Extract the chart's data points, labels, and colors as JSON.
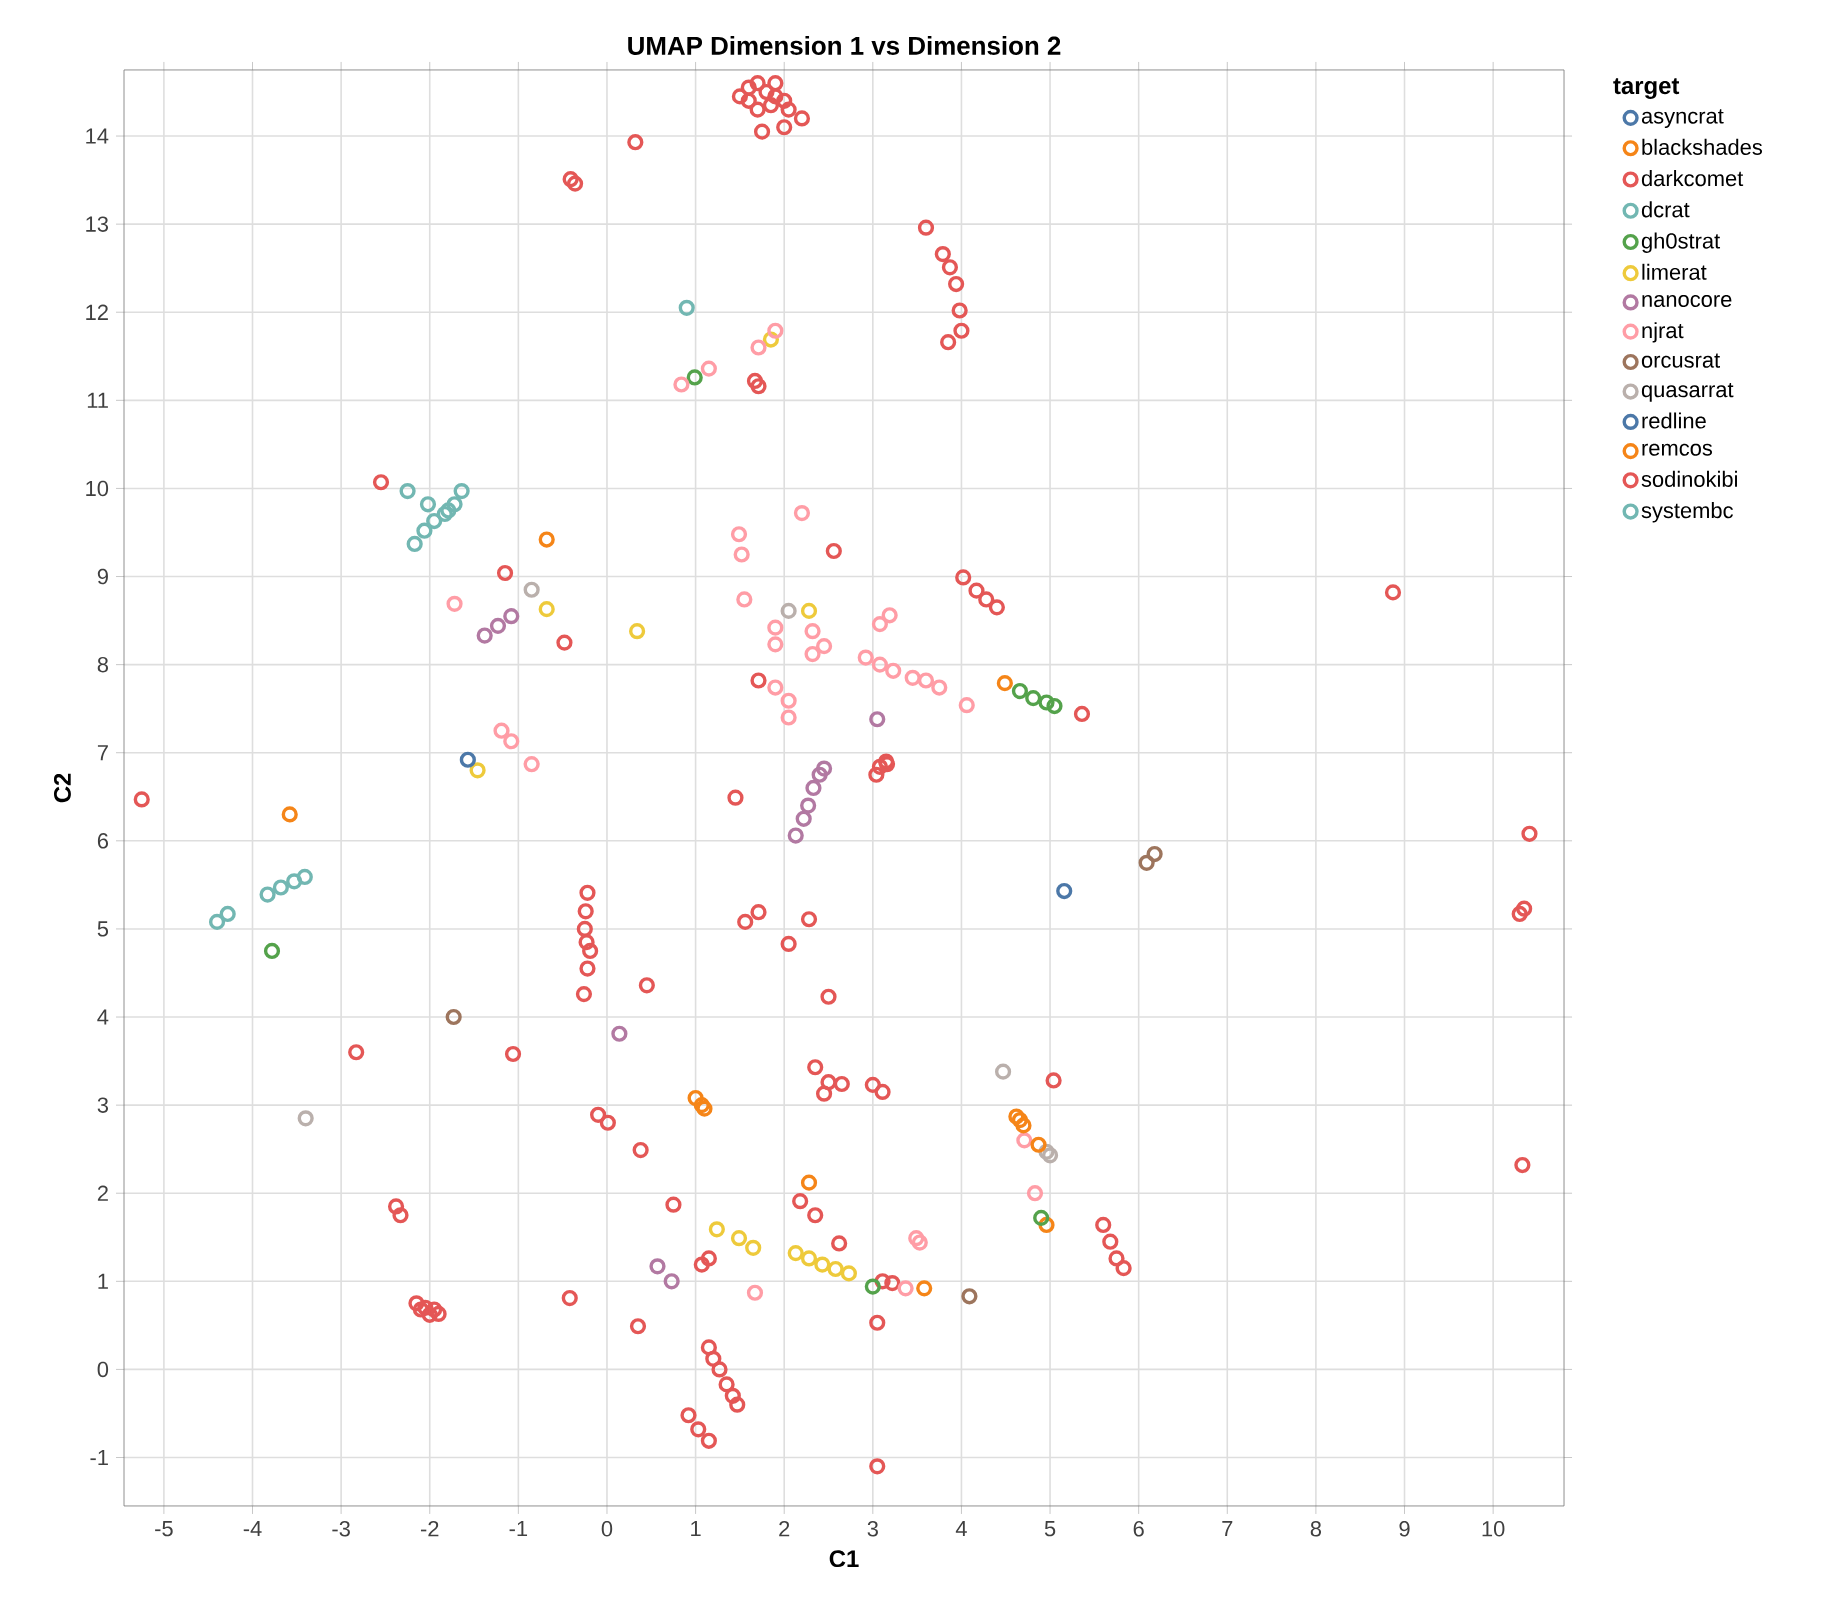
{
  "chart_data": {
    "type": "scatter",
    "title": "UMAP Dimension 1 vs Dimension 2",
    "xlabel": "C1",
    "ylabel": "C2",
    "legend_title": "target",
    "legend": "right",
    "grid": true,
    "marker": "circle",
    "xlim": [
      -5.45,
      10.8
    ],
    "ylim": [
      -1.55,
      14.75
    ],
    "xticks": [
      -5,
      -4,
      -3,
      -2,
      -1,
      0,
      1,
      2,
      3,
      4,
      5,
      6,
      7,
      8,
      9,
      10
    ],
    "yticks": [
      -1,
      0,
      1,
      2,
      3,
      4,
      5,
      6,
      7,
      8,
      9,
      10,
      11,
      12,
      13,
      14
    ],
    "series": [
      {
        "name": "asyncrat",
        "color": "#4c78a8",
        "x": [
          5.16
        ],
        "values": [
          5.43
        ]
      },
      {
        "name": "blackshades",
        "color": "#f58518",
        "x": [
          -0.68,
          1.0,
          1.07,
          -3.58,
          4.66,
          4.62,
          4.96
        ],
        "values": [
          9.42,
          3.08,
          3.0,
          6.3,
          2.83,
          2.87,
          1.64
        ]
      },
      {
        "name": "darkcomet",
        "color": "#e45756",
        "x": [
          1.5,
          1.6,
          1.7,
          1.8,
          1.9,
          2.0,
          1.7,
          1.85,
          2.05,
          1.6,
          1.75,
          2.0,
          2.2,
          1.9,
          0.32,
          -0.41,
          -0.36,
          1.67,
          1.71,
          2.56,
          4.02,
          4.17,
          4.28,
          4.4,
          8.87,
          5.36,
          3.08,
          3.15,
          -2.55,
          -1.15,
          -0.48,
          1.71,
          -5.25,
          -2.83,
          -1.06,
          -2.38,
          -2.33,
          -2.15,
          -2.05,
          -1.95,
          -2.0,
          -2.1,
          -1.9,
          -0.42,
          -0.26,
          0.45,
          -0.1,
          0.01,
          0.38,
          0.75,
          1.15,
          1.07,
          0.35,
          1.15,
          1.2,
          1.27,
          1.35,
          1.42,
          1.47,
          0.92,
          1.03,
          1.15,
          1.45,
          1.56,
          1.71,
          2.05,
          2.28,
          2.5,
          2.35,
          2.5,
          2.65,
          2.45,
          3.0,
          3.11,
          2.18,
          2.35,
          2.62,
          3.11,
          3.22,
          3.05,
          3.05,
          3.04,
          3.16,
          10.41,
          10.3,
          10.35,
          5.04,
          5.6,
          5.68,
          5.75,
          5.83,
          10.33
        ],
        "values": [
          14.45,
          14.55,
          14.6,
          14.5,
          14.45,
          14.4,
          14.3,
          14.35,
          14.3,
          14.4,
          14.05,
          14.1,
          14.2,
          14.6,
          13.93,
          13.51,
          13.46,
          11.22,
          11.16,
          9.29,
          8.99,
          8.84,
          8.74,
          8.65,
          8.82,
          7.44,
          6.84,
          6.9,
          10.07,
          9.04,
          8.25,
          7.82,
          6.47,
          3.6,
          3.58,
          1.85,
          1.75,
          0.75,
          0.7,
          0.68,
          0.62,
          0.68,
          0.63,
          0.81,
          4.26,
          4.36,
          2.89,
          2.8,
          2.49,
          1.87,
          1.26,
          1.19,
          0.49,
          0.25,
          0.12,
          0.0,
          -0.17,
          -0.3,
          -0.4,
          -0.52,
          -0.68,
          -0.81,
          6.49,
          5.08,
          5.19,
          4.83,
          5.11,
          4.23,
          3.43,
          3.26,
          3.24,
          3.13,
          3.23,
          3.15,
          1.91,
          1.75,
          1.43,
          1.0,
          0.98,
          0.53,
          -1.1,
          6.75,
          6.87,
          6.08,
          5.17,
          5.23,
          3.28,
          1.64,
          1.45,
          1.26,
          1.15,
          2.32
        ]
      },
      {
        "name": "dcrat",
        "color": "#72b7b2",
        "x": [
          0.9,
          -4.4,
          -4.28,
          -3.83,
          -3.68,
          -3.53,
          -3.41
        ],
        "values": [
          12.05,
          5.08,
          5.17,
          5.39,
          5.47,
          5.54,
          5.59
        ]
      },
      {
        "name": "gh0strat",
        "color": "#54a24b",
        "x": [
          0.99,
          4.66,
          4.81,
          4.96,
          5.05,
          -3.78,
          3.0,
          4.9
        ],
        "values": [
          11.26,
          7.7,
          7.62,
          7.57,
          7.53,
          4.75,
          0.94,
          1.72
        ]
      },
      {
        "name": "limerat",
        "color": "#eeca3b",
        "x": [
          1.85,
          -0.68,
          0.34,
          2.28,
          1.24,
          1.49,
          1.65,
          2.13,
          2.28,
          2.43,
          2.58,
          2.73,
          -1.46
        ],
        "values": [
          11.69,
          8.63,
          8.38,
          8.61,
          1.59,
          1.49,
          1.38,
          1.32,
          1.26,
          1.19,
          1.14,
          1.09,
          6.8
        ]
      },
      {
        "name": "nanocore",
        "color": "#b279a2",
        "x": [
          3.05,
          -1.38,
          -1.23,
          -1.08,
          0.14,
          0.57,
          0.73,
          2.13,
          2.22,
          2.27,
          2.33,
          2.4,
          2.45
        ],
        "values": [
          7.38,
          8.33,
          8.44,
          8.55,
          3.81,
          1.17,
          1.0,
          6.06,
          6.25,
          6.4,
          6.6,
          6.75,
          6.82
        ]
      },
      {
        "name": "njrat",
        "color": "#ff9da6",
        "x": [
          1.71,
          1.9,
          0.84,
          1.15,
          3.08,
          3.19,
          2.92,
          3.08,
          3.23,
          3.45,
          3.6,
          3.75,
          4.06,
          -1.72,
          1.49,
          1.52,
          1.55,
          2.2,
          1.9,
          1.9,
          2.32,
          2.45,
          2.32,
          1.9,
          2.05,
          2.05,
          -1.19,
          -1.08,
          -0.85,
          1.67,
          3.37,
          4.71,
          4.83,
          3.49,
          3.53
        ],
        "values": [
          11.6,
          11.79,
          11.18,
          11.36,
          8.46,
          8.56,
          8.08,
          8.0,
          7.93,
          7.85,
          7.82,
          7.74,
          7.54,
          8.69,
          9.48,
          9.25,
          8.74,
          9.72,
          8.42,
          8.23,
          8.12,
          8.21,
          8.38,
          7.74,
          7.59,
          7.4,
          7.25,
          7.13,
          6.87,
          0.87,
          0.92,
          2.6,
          2.0,
          1.49,
          1.44
        ]
      },
      {
        "name": "orcusrat",
        "color": "#9d755d",
        "x": [
          -1.73,
          6.09,
          6.18,
          4.09
        ],
        "values": [
          4.0,
          5.75,
          5.85,
          0.83
        ]
      },
      {
        "name": "quasarrat",
        "color": "#bab0ac",
        "x": [
          -0.85,
          2.05,
          -3.4,
          4.47,
          4.96,
          5.0
        ],
        "values": [
          8.85,
          8.61,
          2.85,
          3.38,
          2.47,
          2.43
        ]
      },
      {
        "name": "redline",
        "color": "#4c78a8",
        "x": [
          -1.57
        ],
        "values": [
          6.92
        ]
      },
      {
        "name": "remcos",
        "color": "#f58518",
        "x": [
          4.49,
          1.1,
          2.28,
          3.58,
          4.87,
          4.7
        ],
        "values": [
          7.79,
          2.96,
          2.12,
          0.92,
          2.55,
          2.77
        ]
      },
      {
        "name": "sodinokibi",
        "color": "#e45756",
        "x": [
          -0.22,
          -0.24,
          -0.25,
          -0.23,
          -0.19,
          -0.22,
          3.6,
          3.79,
          3.87,
          3.94,
          3.98,
          4.0,
          3.85
        ],
        "values": [
          5.41,
          5.2,
          5.0,
          4.85,
          4.75,
          4.55,
          12.96,
          12.66,
          12.51,
          12.32,
          12.02,
          11.79,
          11.66
        ]
      },
      {
        "name": "systembc",
        "color": "#72b7b2",
        "x": [
          -2.25,
          -2.02,
          -1.83,
          -1.64,
          -1.72,
          -1.79,
          -1.95,
          -2.06,
          -2.17
        ],
        "values": [
          9.97,
          9.82,
          9.71,
          9.97,
          9.82,
          9.75,
          9.63,
          9.52,
          9.37
        ]
      }
    ]
  }
}
